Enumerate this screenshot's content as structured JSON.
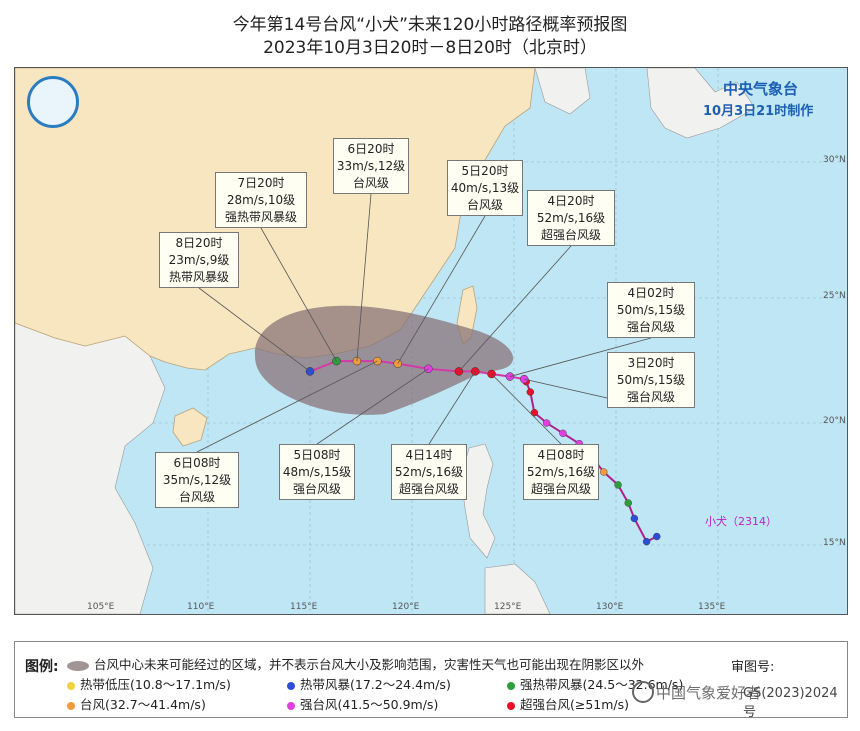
{
  "header": {
    "title": "今年第14号台风“小犬”未来120小时路径概率预报图",
    "subtitle": "2023年10月3日20时－8日20时（北京时）"
  },
  "agency": {
    "name": "中央气象台",
    "issued": "10月3日21时制作"
  },
  "axes": {
    "longitude_labels": [
      "105°E",
      "110°E",
      "115°E",
      "120°E",
      "125°E",
      "130°E",
      "135°E"
    ],
    "latitude_labels": [
      "15°N",
      "20°N",
      "25°N",
      "30°N"
    ]
  },
  "typhoon": {
    "label": "小犬（2314）"
  },
  "forecast_points": [
    {
      "time": "3日20时",
      "wind": "50m/s,15级",
      "category": "强台风级",
      "lon": 125.5,
      "lat": 21.7,
      "color": "#e040e0"
    },
    {
      "time": "4日02时",
      "wind": "50m/s,15级",
      "category": "强台风级",
      "lon": 124.8,
      "lat": 21.8,
      "color": "#e040e0"
    },
    {
      "time": "4日08时",
      "wind": "52m/s,16级",
      "category": "超强台风级",
      "lon": 123.9,
      "lat": 21.9,
      "color": "#e8102a"
    },
    {
      "time": "4日14时",
      "wind": "52m/s,16级",
      "category": "超强台风级",
      "lon": 123.1,
      "lat": 22.0,
      "color": "#e8102a"
    },
    {
      "time": "4日20时",
      "wind": "52m/s,16级",
      "category": "超强台风级",
      "lon": 122.3,
      "lat": 22.0,
      "color": "#e8102a"
    },
    {
      "time": "5日08时",
      "wind": "48m/s,15级",
      "category": "强台风级",
      "lon": 120.8,
      "lat": 22.1,
      "color": "#e040e0"
    },
    {
      "time": "5日20时",
      "wind": "40m/s,13级",
      "category": "台风级",
      "lon": 119.3,
      "lat": 22.3,
      "color": "#f39a3c"
    },
    {
      "time": "6日08时",
      "wind": "35m/s,12级",
      "category": "台风级",
      "lon": 118.3,
      "lat": 22.4,
      "color": "#f39a3c"
    },
    {
      "time": "6日20时",
      "wind": "33m/s,12级",
      "category": "台风级",
      "lon": 117.3,
      "lat": 22.4,
      "color": "#f39a3c"
    },
    {
      "time": "7日20时",
      "wind": "28m/s,10级",
      "category": "强热带风暴级",
      "lon": 116.3,
      "lat": 22.4,
      "color": "#2e9e3a"
    },
    {
      "time": "8日20时",
      "wind": "23m/s,9级",
      "category": "热带风暴级",
      "lon": 115.0,
      "lat": 22.0,
      "color": "#2f4ed8"
    }
  ],
  "legend": {
    "title": "图例:",
    "area_note": "台风中心未来可能经过的区域，并不表示台风大小及影响范围，灾害性天气也可能出现在阴影区以外",
    "items": [
      {
        "label": "热带低压(10.8～17.1m/s)",
        "color": "#f2d23c"
      },
      {
        "label": "热带风暴(17.2～24.4m/s)",
        "color": "#2f4ed8"
      },
      {
        "label": "强热带风暴(24.5～32.6m/s)",
        "color": "#2e9e3a"
      },
      {
        "label": "台风(32.7～41.4m/s)",
        "color": "#f39a3c"
      },
      {
        "label": "强台风(41.5～50.9m/s)",
        "color": "#e040e0"
      },
      {
        "label": "超强台风(≥51m/s)",
        "color": "#e8102a"
      }
    ],
    "review_label": "审图号:",
    "review_number": "GS(2023)2024号"
  },
  "watermark": "中国气象爱好者",
  "colors": {
    "sea": "#bfe6f5",
    "land": "#f8e6c0",
    "land_other": "#f1f1ef",
    "cone": "#8a7378",
    "history_track": "#e8102a"
  }
}
